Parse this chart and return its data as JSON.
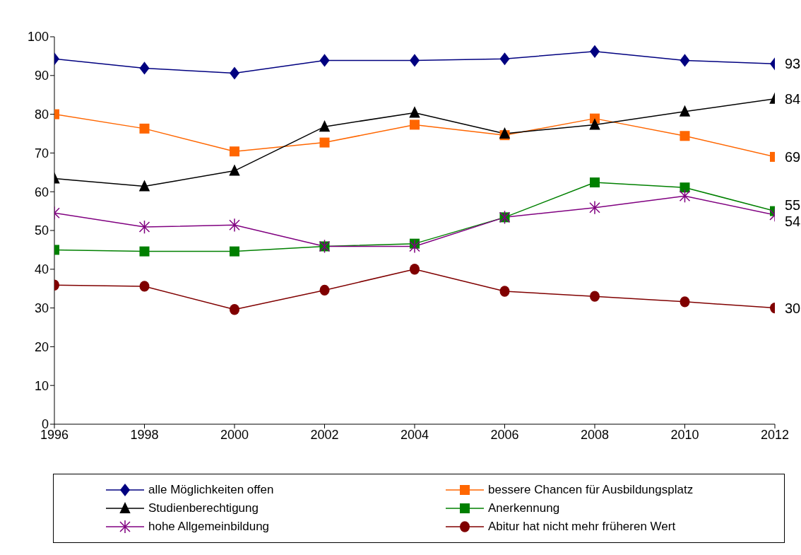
{
  "chart_data": {
    "type": "line",
    "x": [
      1996,
      1998,
      2000,
      2002,
      2004,
      2006,
      2008,
      2010,
      2012
    ],
    "xlim": [
      1996,
      2012
    ],
    "xticks": [
      1996,
      1998,
      2000,
      2002,
      2004,
      2006,
      2008,
      2010,
      2012
    ],
    "ylim": [
      0,
      100
    ],
    "yticks": [
      0,
      10,
      20,
      30,
      40,
      50,
      60,
      70,
      80,
      90,
      100
    ],
    "grid": false,
    "legend": "bottom",
    "series": [
      {
        "name": "alle Möglichkeiten offen",
        "color": "#000080",
        "marker": "diamond",
        "values": [
          94.3,
          91.9,
          90.6,
          93.9,
          93.9,
          94.3,
          96.2,
          93.9,
          93
        ],
        "value_labels": [
          null,
          null,
          null,
          null,
          null,
          null,
          null,
          null,
          "93"
        ]
      },
      {
        "name": "bessere Chancen für Ausbildungsplatz",
        "color": "#ff6600",
        "marker": "square",
        "values": [
          80,
          76.3,
          70.4,
          72.7,
          77.3,
          74.6,
          78.9,
          74.4,
          69
        ],
        "value_labels": [
          null,
          null,
          null,
          null,
          null,
          null,
          null,
          null,
          "69"
        ]
      },
      {
        "name": "Studienberechtigung",
        "color": "#000000",
        "marker": "triangle",
        "values": [
          63.4,
          61.4,
          65.4,
          76.8,
          80.4,
          75,
          77.3,
          80.7,
          84
        ],
        "value_labels": [
          null,
          null,
          null,
          null,
          null,
          null,
          null,
          null,
          "84"
        ]
      },
      {
        "name": "Anerkennung",
        "color": "#008000",
        "marker": "square",
        "values": [
          45,
          44.6,
          44.6,
          45.9,
          46.6,
          53.4,
          62.4,
          61.1,
          55
        ],
        "value_labels": [
          null,
          null,
          null,
          null,
          null,
          null,
          null,
          null,
          "55"
        ]
      },
      {
        "name": "hohe Allgemeinbildung",
        "color": "#800080",
        "marker": "cross",
        "values": [
          54.5,
          50.9,
          51.4,
          45.9,
          45.9,
          53.4,
          55.9,
          58.9,
          54
        ],
        "value_labels": [
          null,
          null,
          null,
          null,
          null,
          null,
          null,
          null,
          "54"
        ]
      },
      {
        "name": "Abitur hat nicht mehr früheren Wert",
        "color": "#800000",
        "marker": "circle",
        "values": [
          35.9,
          35.6,
          29.6,
          34.6,
          40,
          34.3,
          33,
          31.6,
          30
        ],
        "value_labels": [
          null,
          null,
          null,
          null,
          null,
          null,
          null,
          null,
          "30"
        ]
      }
    ]
  }
}
